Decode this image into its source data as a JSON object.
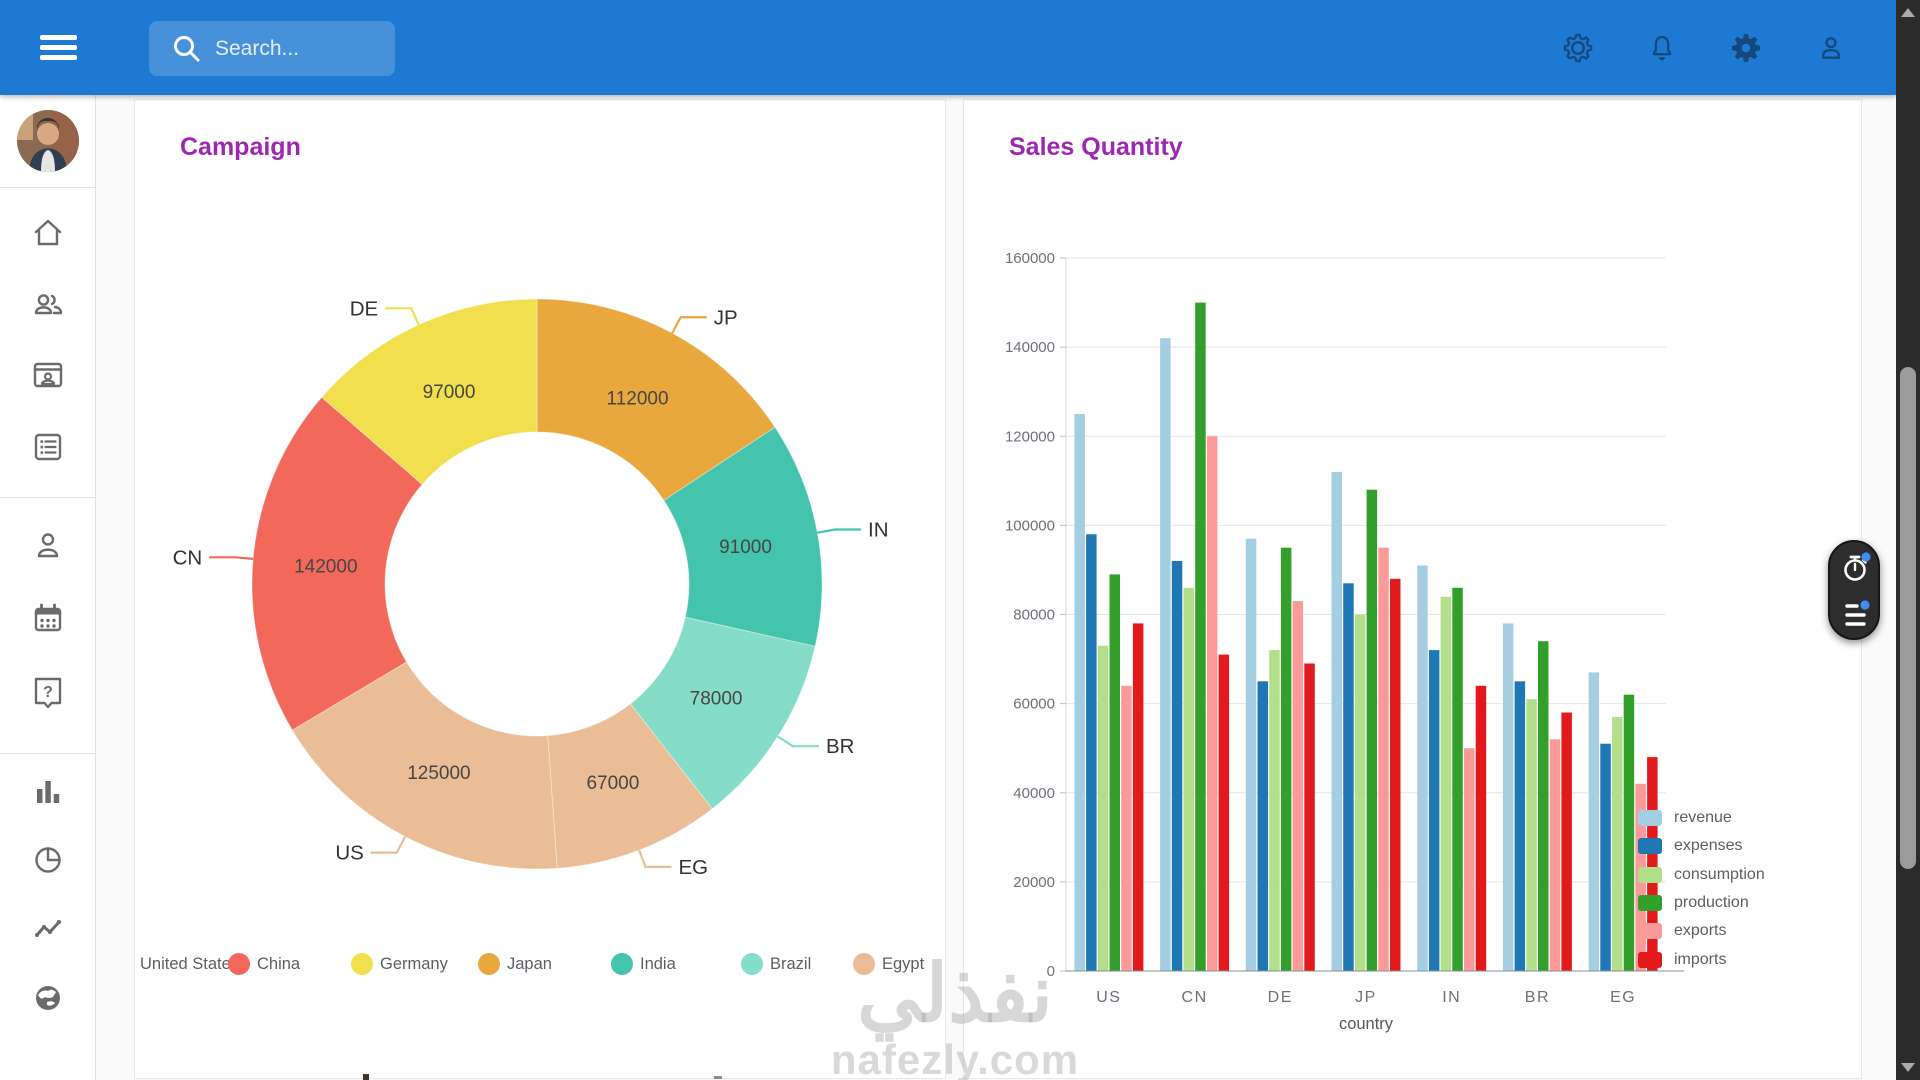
{
  "navbar": {
    "search_placeholder": "Search...",
    "icons": [
      "display-settings",
      "notifications",
      "settings",
      "profile"
    ]
  },
  "sidebar": {
    "icons": [
      "home",
      "people",
      "contact-card",
      "list",
      "person",
      "calendar",
      "help",
      "bar-chart",
      "pie-chart",
      "trend-line",
      "globe"
    ]
  },
  "watermark": {
    "arabic": "نفذلي",
    "latin": "nafezly.com"
  },
  "colors": {
    "navbar_blue": "#1E79D2",
    "navbar_icon": "#14497E",
    "title_purple": "#9C27B0",
    "accent_blue": "#3F8CEF",
    "grid_line": "#E6E6E6",
    "axis_text": "#6E7079"
  },
  "chart_data": [
    {
      "type": "pie",
      "title": "Campaign",
      "subtype": "donut",
      "inner_radius_ratio": 0.53,
      "legend_position": "bottom",
      "series": [
        {
          "code": "US",
          "label": "United States",
          "value": 125000,
          "color": "#EABD96"
        },
        {
          "code": "CN",
          "label": "China",
          "value": 142000,
          "color": "#F2695C"
        },
        {
          "code": "DE",
          "label": "Germany",
          "value": 97000,
          "color": "#F2DF4E"
        },
        {
          "code": "JP",
          "label": "Japan",
          "value": 112000,
          "color": "#E9A83E"
        },
        {
          "code": "IN",
          "label": "India",
          "value": 91000,
          "color": "#45C4AD"
        },
        {
          "code": "BR",
          "label": "Brazil",
          "value": 78000,
          "color": "#85DCC8"
        },
        {
          "code": "EG",
          "label": "Egypt",
          "value": 67000,
          "color": "#EABD96"
        }
      ],
      "draw_order": [
        "JP",
        "IN",
        "BR",
        "EG",
        "US",
        "CN",
        "DE"
      ]
    },
    {
      "type": "bar",
      "title": "Sales Quantity",
      "xlabel": "country",
      "categories": [
        "US",
        "CN",
        "DE",
        "JP",
        "IN",
        "BR",
        "EG"
      ],
      "series": [
        {
          "name": "revenue",
          "color": "#A6CEE3",
          "values": [
            125000,
            142000,
            97000,
            112000,
            91000,
            78000,
            67000
          ]
        },
        {
          "name": "expenses",
          "color": "#1F78B4",
          "values": [
            98000,
            92000,
            65000,
            87000,
            72000,
            65000,
            51000
          ]
        },
        {
          "name": "consumption",
          "color": "#B2DF8A",
          "values": [
            73000,
            86000,
            72000,
            80000,
            84000,
            61000,
            57000
          ]
        },
        {
          "name": "production",
          "color": "#33A02C",
          "values": [
            89000,
            150000,
            95000,
            108000,
            86000,
            74000,
            62000
          ]
        },
        {
          "name": "exports",
          "color": "#FB9A99",
          "values": [
            64000,
            120000,
            83000,
            95000,
            50000,
            52000,
            42000
          ]
        },
        {
          "name": "imports",
          "color": "#E31A1C",
          "values": [
            78000,
            71000,
            69000,
            88000,
            64000,
            58000,
            48000
          ]
        }
      ],
      "ylim": [
        0,
        160000
      ],
      "ytick_step": 20000,
      "yticks": [
        0,
        20000,
        40000,
        60000,
        80000,
        100000,
        120000,
        140000,
        160000
      ],
      "grid": true,
      "legend_position": "bottom-right"
    }
  ]
}
